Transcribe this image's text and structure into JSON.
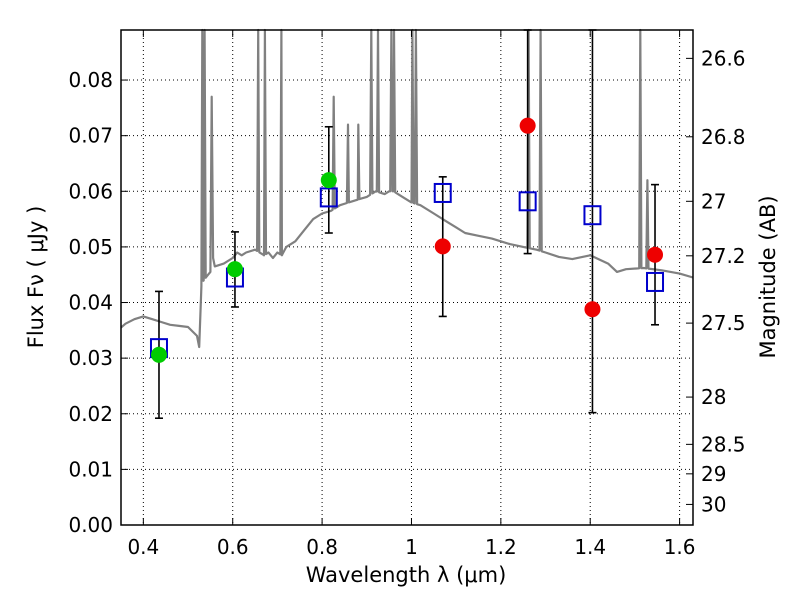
{
  "chart_data": {
    "type": "scatter",
    "xlabel": "Wavelength  λ (μm)",
    "ylabel": "Flux  Fν  ( μJy )",
    "ylabel_right": "Magnitude (AB)",
    "xlim": [
      0.35,
      1.63
    ],
    "ylim": [
      0.0,
      0.089
    ],
    "grid": true,
    "x_ticks": [
      0.4,
      0.6,
      0.8,
      1.0,
      1.2,
      1.4,
      1.6
    ],
    "x_tick_labels": [
      "0.4",
      "0.6",
      "0.8",
      "1",
      "1.2",
      "1.4",
      "1.6"
    ],
    "y_ticks": [
      0.0,
      0.01,
      0.02,
      0.03,
      0.04,
      0.05,
      0.06,
      0.07,
      0.08
    ],
    "y_tick_labels": [
      "0.00",
      "0.01",
      "0.02",
      "0.03",
      "0.04",
      "0.05",
      "0.06",
      "0.07",
      "0.08"
    ],
    "right_ticks": [
      {
        "label": "26.6",
        "flux": 0.0839
      },
      {
        "label": "26.8",
        "flux": 0.0698
      },
      {
        "label": "27",
        "flux": 0.0582
      },
      {
        "label": "27.2",
        "flux": 0.0484
      },
      {
        "label": "27.5",
        "flux": 0.0363
      },
      {
        "label": "28",
        "flux": 0.023
      },
      {
        "label": "28.5",
        "flux": 0.0145
      },
      {
        "label": "29",
        "flux": 0.0092
      },
      {
        "label": "30",
        "flux": 0.0037
      }
    ],
    "model_spectrum": {
      "color": "#808080",
      "x": [
        0.35,
        0.36,
        0.38,
        0.4,
        0.42,
        0.44,
        0.46,
        0.48,
        0.5,
        0.52,
        0.525,
        0.53,
        0.535,
        0.54,
        0.545,
        0.55,
        0.553,
        0.556,
        0.56,
        0.58,
        0.6,
        0.61,
        0.62,
        0.63,
        0.65,
        0.67,
        0.68,
        0.69,
        0.7,
        0.71,
        0.72,
        0.74,
        0.76,
        0.78,
        0.8,
        0.82,
        0.84,
        0.86,
        0.88,
        0.9,
        0.92,
        0.94,
        0.95,
        0.96,
        0.98,
        1.0,
        1.02,
        1.05,
        1.08,
        1.1,
        1.12,
        1.15,
        1.18,
        1.2,
        1.22,
        1.25,
        1.28,
        1.3,
        1.33,
        1.36,
        1.4,
        1.44,
        1.46,
        1.48,
        1.52,
        1.56,
        1.6,
        1.63
      ],
      "y": [
        0.0355,
        0.0362,
        0.037,
        0.0375,
        0.037,
        0.0365,
        0.036,
        0.0358,
        0.0356,
        0.034,
        0.032,
        0.043,
        0.044,
        0.0445,
        0.045,
        0.0455,
        0.077,
        0.048,
        0.0465,
        0.047,
        0.048,
        0.049,
        0.0485,
        0.049,
        0.0495,
        0.0485,
        0.049,
        0.048,
        0.049,
        0.0485,
        0.05,
        0.051,
        0.053,
        0.055,
        0.056,
        0.0565,
        0.0575,
        0.058,
        0.0585,
        0.059,
        0.06,
        0.0595,
        0.06,
        0.06,
        0.059,
        0.058,
        0.0575,
        0.056,
        0.0545,
        0.0535,
        0.0525,
        0.052,
        0.0515,
        0.051,
        0.0505,
        0.05,
        0.0495,
        0.049,
        0.0482,
        0.0478,
        0.0485,
        0.047,
        0.0455,
        0.046,
        0.0462,
        0.0458,
        0.0452,
        0.0445
      ],
      "emission_lines": [
        {
          "x": 0.532,
          "peak": 0.089
        },
        {
          "x": 0.537,
          "peak": 0.089
        },
        {
          "x": 0.657,
          "peak": 0.089
        },
        {
          "x": 0.672,
          "peak": 0.089
        },
        {
          "x": 0.709,
          "peak": 0.089
        },
        {
          "x": 0.826,
          "peak": 0.077
        },
        {
          "x": 0.858,
          "peak": 0.072
        },
        {
          "x": 0.881,
          "peak": 0.072
        },
        {
          "x": 0.91,
          "peak": 0.089
        },
        {
          "x": 0.925,
          "peak": 0.089
        },
        {
          "x": 0.955,
          "peak": 0.089
        },
        {
          "x": 0.961,
          "peak": 0.089
        },
        {
          "x": 1.002,
          "peak": 0.089
        },
        {
          "x": 1.01,
          "peak": 0.089
        },
        {
          "x": 1.262,
          "peak": 0.089
        },
        {
          "x": 1.289,
          "peak": 0.089
        },
        {
          "x": 1.512,
          "peak": 0.089
        },
        {
          "x": 1.528,
          "peak": 0.062
        }
      ]
    },
    "series": [
      {
        "marker": "open-square",
        "color": "#0000cc",
        "points": [
          {
            "x": 0.435,
            "y": 0.0318
          },
          {
            "x": 0.605,
            "y": 0.0445
          },
          {
            "x": 0.815,
            "y": 0.0589
          },
          {
            "x": 1.07,
            "y": 0.0597
          },
          {
            "x": 1.26,
            "y": 0.0582
          },
          {
            "x": 1.405,
            "y": 0.0557
          },
          {
            "x": 1.545,
            "y": 0.0437
          }
        ]
      },
      {
        "marker": "filled-circle",
        "color": "#00cc00",
        "points": [
          {
            "x": 0.435,
            "y": 0.0306,
            "err_low": 0.0192,
            "err_high": 0.042
          },
          {
            "x": 0.605,
            "y": 0.046,
            "err_low": 0.0392,
            "err_high": 0.0527
          },
          {
            "x": 0.815,
            "y": 0.062,
            "err_low": 0.0525,
            "err_high": 0.0716
          }
        ]
      },
      {
        "marker": "filled-circle",
        "color": "#ee0000",
        "points": [
          {
            "x": 1.07,
            "y": 0.0501,
            "err_low": 0.0375,
            "err_high": 0.0626
          },
          {
            "x": 1.26,
            "y": 0.0718,
            "err_low": 0.0488,
            "err_high": 0.089
          },
          {
            "x": 1.405,
            "y": 0.0388,
            "err_low": 0.0202,
            "err_high": 0.089
          },
          {
            "x": 1.545,
            "y": 0.0486,
            "err_low": 0.036,
            "err_high": 0.0612
          }
        ]
      }
    ]
  }
}
